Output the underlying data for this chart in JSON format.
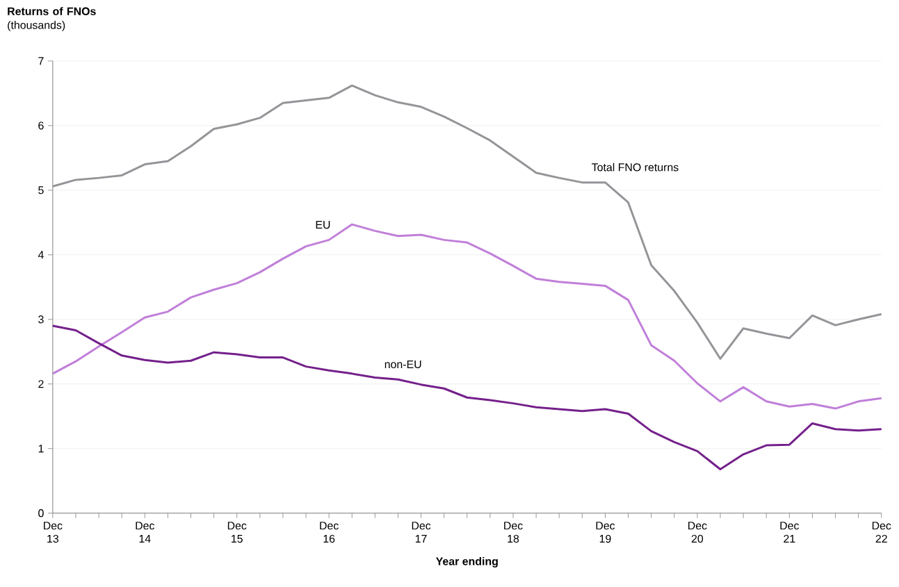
{
  "chart_data": {
    "type": "line",
    "ylabel": "**Returns of FNOs** (thousands)",
    "xlabel": "Year ending",
    "categories": [
      "Dec 13",
      null,
      null,
      null,
      "Dec 14",
      null,
      null,
      null,
      "Dec 15",
      null,
      null,
      null,
      "Dec 16",
      null,
      null,
      null,
      "Dec 17",
      null,
      null,
      null,
      "Dec 18",
      null,
      null,
      null,
      "Dec 19",
      null,
      null,
      null,
      "Dec 20",
      null,
      null,
      null,
      "Dec 21",
      null,
      null,
      null,
      "Dec 22"
    ],
    "series": [
      {
        "name": "Total FNO returns",
        "color": "#939598",
        "values": [
          5.06,
          5.16,
          5.19,
          5.23,
          5.4,
          5.45,
          5.68,
          5.95,
          6.02,
          6.12,
          6.35,
          6.39,
          6.43,
          6.62,
          6.47,
          6.36,
          6.29,
          6.14,
          5.96,
          5.77,
          5.52,
          5.27,
          5.19,
          5.12,
          5.12,
          4.81,
          3.84,
          3.44,
          2.95,
          2.39,
          2.86,
          2.78,
          2.71,
          3.06,
          2.91,
          3.0,
          3.08
        ]
      },
      {
        "name": "EU",
        "color": "#c07fd9",
        "values": [
          2.16,
          2.35,
          2.58,
          2.8,
          3.03,
          3.12,
          3.34,
          3.46,
          3.56,
          3.73,
          3.94,
          4.13,
          4.23,
          4.47,
          4.37,
          4.29,
          4.31,
          4.23,
          4.19,
          4.02,
          3.83,
          3.63,
          3.58,
          3.55,
          3.52,
          3.3,
          2.6,
          2.36,
          2.01,
          1.73,
          1.95,
          1.73,
          1.65,
          1.69,
          1.62,
          1.73,
          1.78
        ]
      },
      {
        "name": "non-EU",
        "color": "#74208b",
        "values": [
          2.9,
          2.83,
          2.63,
          2.44,
          2.37,
          2.33,
          2.36,
          2.49,
          2.46,
          2.41,
          2.41,
          2.27,
          2.21,
          2.16,
          2.1,
          2.07,
          1.99,
          1.93,
          1.79,
          1.75,
          1.7,
          1.64,
          1.61,
          1.58,
          1.61,
          1.54,
          1.27,
          1.1,
          0.96,
          0.68,
          0.91,
          1.05,
          1.06,
          1.39,
          1.3,
          1.28,
          1.3
        ]
      }
    ],
    "ylim": [
      0,
      7
    ],
    "yticks": [
      0,
      1,
      2,
      3,
      4,
      5,
      6,
      7
    ],
    "grid": "y",
    "legend": false,
    "marker": "none",
    "line_style": "solid"
  }
}
